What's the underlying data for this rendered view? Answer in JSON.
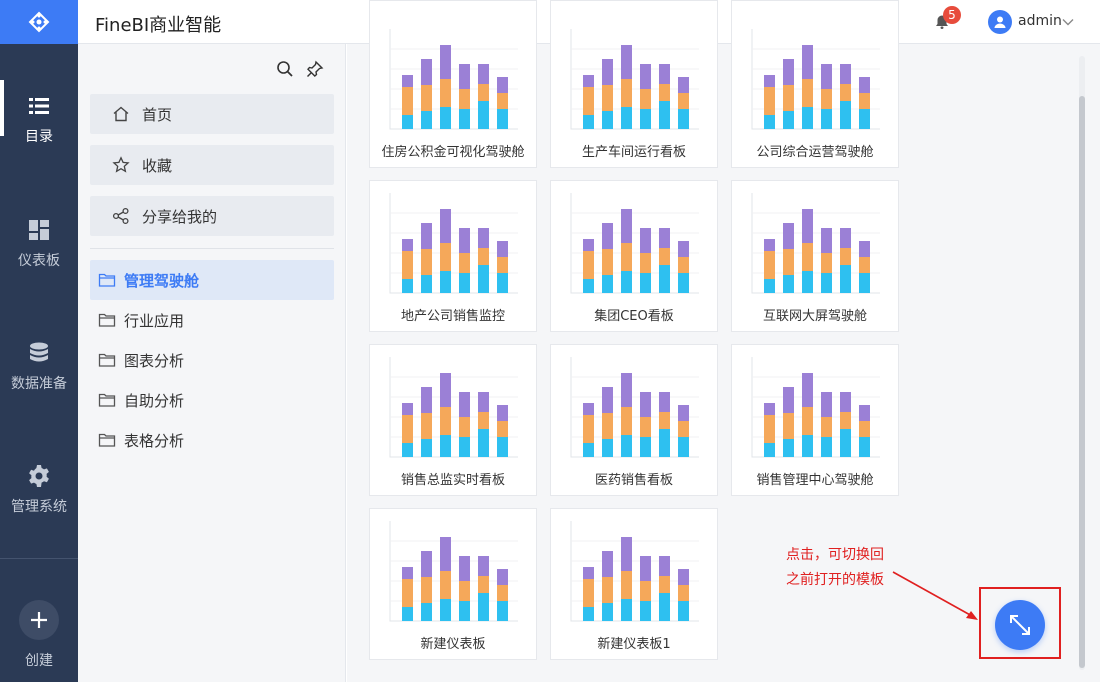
{
  "app": {
    "title": "FineBI商业智能"
  },
  "header": {
    "notification_count": "5",
    "username": "admin"
  },
  "leftnav": {
    "items": [
      {
        "label": "目录",
        "icon": "list-icon"
      },
      {
        "label": "仪表板",
        "icon": "dashboard-icon"
      },
      {
        "label": "数据准备",
        "icon": "database-icon"
      },
      {
        "label": "管理系统",
        "icon": "gear-icon"
      }
    ],
    "create_label": "创建"
  },
  "catalog": {
    "top_items": [
      {
        "label": "首页",
        "icon": "home-icon"
      },
      {
        "label": "收藏",
        "icon": "star-icon"
      },
      {
        "label": "分享给我的",
        "icon": "share-icon"
      }
    ],
    "folders": [
      {
        "label": "管理驾驶舱",
        "active": true
      },
      {
        "label": "行业应用"
      },
      {
        "label": "图表分析"
      },
      {
        "label": "自助分析"
      },
      {
        "label": "表格分析"
      }
    ]
  },
  "dashboards": [
    "住房公积金可视化驾驶舱",
    "生产车间运行看板",
    "公司综合运营驾驶舱",
    "地产公司销售监控",
    "集团CEO看板",
    "互联网大屏驾驶舱",
    "销售总监实时看板",
    "医药销售看板",
    "销售管理中心驾驶舱",
    "新建仪表板",
    "新建仪表板1"
  ],
  "thumbnail_colors": {
    "bottom": "#2ec0f0",
    "middle": "#f5a85a",
    "top": "#9b80d6"
  },
  "annotation": {
    "line1": "点击，可切换回",
    "line2": "之前打开的模板"
  },
  "colors": {
    "accent": "#3d7bf5",
    "nav_bg": "#2b3a55",
    "annotation": "#e02020"
  }
}
